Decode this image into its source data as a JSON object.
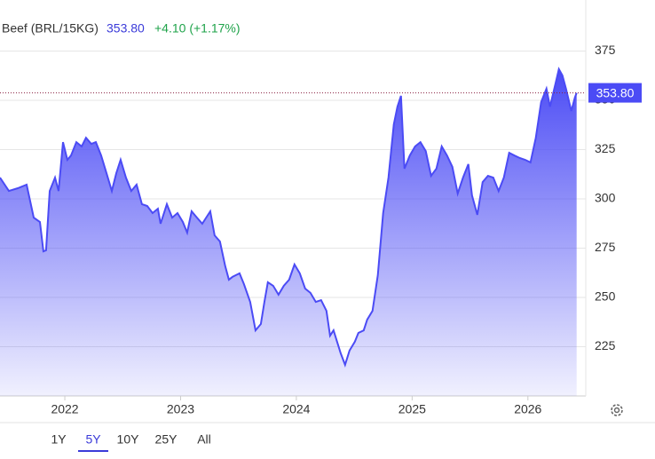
{
  "header": {
    "symbol": "Beef (BRL/15KG)",
    "price": "353.80",
    "change": "+4.10 (+1.17%)"
  },
  "chart_data": {
    "type": "area",
    "x": [
      2021.44,
      2021.517,
      2021.593,
      2021.67,
      2021.731,
      2021.785,
      2021.815,
      2021.838,
      2021.869,
      2021.915,
      2021.946,
      2021.984,
      2022.022,
      2022.053,
      2022.099,
      2022.145,
      2022.183,
      2022.229,
      2022.268,
      2022.314,
      2022.36,
      2022.406,
      2022.444,
      2022.482,
      2022.528,
      2022.574,
      2022.62,
      2022.666,
      2022.712,
      2022.758,
      2022.804,
      2022.827,
      2022.881,
      2022.927,
      2022.973,
      2023.019,
      2023.057,
      2023.095,
      2023.141,
      2023.187,
      2023.256,
      2023.294,
      2023.34,
      2023.386,
      2023.417,
      2023.448,
      2023.509,
      2023.547,
      2023.601,
      2023.647,
      2023.693,
      2023.724,
      2023.754,
      2023.8,
      2023.846,
      2023.892,
      2023.938,
      2023.984,
      2024.03,
      2024.076,
      2024.122,
      2024.168,
      2024.214,
      2024.26,
      2024.291,
      2024.321,
      2024.352,
      2024.383,
      2024.421,
      2024.459,
      2024.505,
      2024.536,
      2024.582,
      2024.612,
      2024.658,
      2024.704,
      2024.75,
      2024.796,
      2024.842,
      2024.873,
      2024.904,
      2024.934,
      2024.98,
      2025.026,
      2025.072,
      2025.118,
      2025.164,
      2025.21,
      2025.256,
      2025.302,
      2025.348,
      2025.394,
      2025.44,
      2025.486,
      2025.517,
      2025.563,
      2025.609,
      2025.655,
      2025.701,
      2025.747,
      2025.792,
      2025.838,
      2025.884,
      2025.93,
      2025.976,
      2026.022,
      2026.068,
      2026.114,
      2026.16,
      2026.191,
      2026.237,
      2026.268,
      2026.298,
      2026.329,
      2026.375,
      2026.406,
      2026.421
    ],
    "series": [
      {
        "color": "#4b4bf5",
        "values": [
          310.8,
          304,
          305.4,
          307.2,
          290.5,
          288.3,
          273.4,
          273.9,
          304,
          310.8,
          304,
          328.8,
          319.8,
          322,
          328.8,
          326.6,
          331,
          327.9,
          328.8,
          322,
          313,
          304,
          313,
          319.8,
          310.8,
          304,
          307.2,
          297.3,
          296.4,
          292.8,
          295,
          287.4,
          297.3,
          290.5,
          292.8,
          288.3,
          282.9,
          293.7,
          290.5,
          287.4,
          293.7,
          281.5,
          278.4,
          265.8,
          259,
          260.4,
          262.2,
          256.8,
          247.7,
          233.3,
          236.5,
          247.7,
          257.7,
          255.9,
          251.4,
          255.9,
          259,
          266.7,
          262.2,
          254.5,
          252.3,
          247.7,
          248.6,
          243.2,
          230.6,
          233.3,
          227.5,
          221.6,
          215.8,
          223,
          227.5,
          232,
          233.3,
          238.7,
          243.2,
          261.3,
          292.8,
          310.8,
          337.8,
          346.8,
          352.3,
          315.3,
          322,
          326.6,
          328.8,
          324.3,
          311.7,
          315.3,
          326.6,
          322,
          316.2,
          302.7,
          310.8,
          317.6,
          301.8,
          291.9,
          308.5,
          311.7,
          310.8,
          304,
          310.8,
          323.4,
          322,
          320.7,
          319.8,
          318.5,
          331,
          349.1,
          355.9,
          346.8,
          358.1,
          365.8,
          362.6,
          355.9,
          344.6,
          351.4,
          353.8
        ]
      }
    ],
    "xlim": [
      2021.44,
      2026.5
    ],
    "xticks": [
      2022,
      2023,
      2024,
      2025,
      2026
    ],
    "ylim": [
      200,
      400
    ],
    "yticks": [
      225,
      250,
      275,
      300,
      325,
      350,
      375
    ],
    "grid": true
  },
  "ranges": [
    "1Y",
    "5Y",
    "10Y",
    "25Y",
    "All"
  ],
  "active_range": "5Y"
}
